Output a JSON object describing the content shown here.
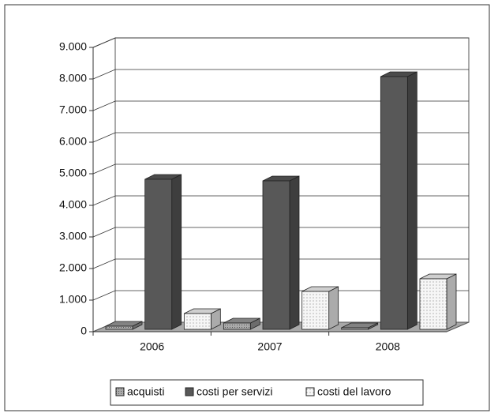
{
  "chart_data": {
    "type": "bar3d",
    "categories": [
      "2006",
      "2007",
      "2008"
    ],
    "series": [
      {
        "name": "acquisti",
        "color": "#9a9a9a",
        "values": [
          100,
          200,
          50
        ]
      },
      {
        "name": "costi per servizi",
        "color": "#585858",
        "values": [
          4750,
          4700,
          8000
        ]
      },
      {
        "name": "costi del lavoro",
        "color": "#f4f4f4",
        "values": [
          500,
          1200,
          1600
        ]
      }
    ],
    "ylim": [
      0,
      9000
    ],
    "yticks": [
      0,
      {
        "value": 1000,
        "label": "1.000"
      },
      {
        "value": 2000,
        "label": "2.000"
      },
      {
        "value": 3000,
        "label": "3.000"
      },
      {
        "value": 4000,
        "label": "4.000"
      },
      {
        "value": 5000,
        "label": "5.000"
      },
      {
        "value": 6000,
        "label": "6.000"
      },
      {
        "value": 7000,
        "label": "7.000"
      },
      {
        "value": 8000,
        "label": "8.000"
      },
      {
        "value": 9000,
        "label": "9.000"
      }
    ],
    "grid": true,
    "legend": "bottom"
  }
}
